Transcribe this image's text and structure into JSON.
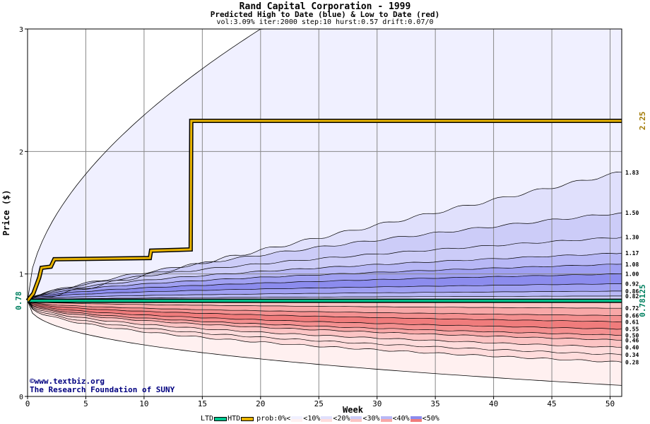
{
  "header": {
    "title": "Rand Capital Corporation - 1999",
    "subtitle": "Predicted High to Date (blue) &  Low to Date (red)",
    "params": "vol:3.09% iter:2000 step:10 hurst:0.57 drift:0.07/0"
  },
  "credits": {
    "line1": "©www.textbiz.org",
    "line2": "The Research Foundation of SUNY"
  },
  "legend": {
    "ltd": "LTD",
    "htd": "HTD",
    "prob": "prob:0%<",
    "b10": "<10%",
    "b20": "<20%",
    "b30": "<30%",
    "b40": "<40%",
    "b50": "<50%"
  },
  "colors": {
    "ltd": "#00c890",
    "htd": "#e8b400",
    "current": "#008060",
    "highlabel": "#a07800",
    "blue_bands": [
      "#f0f0ff",
      "#e0e0fc",
      "#ccccf8",
      "#b8b8f6",
      "#a0a0f2",
      "#8c8cee"
    ],
    "red_bands": [
      "#fff0f0",
      "#ffdcdc",
      "#fcc4c4",
      "#f8a8a8",
      "#f49090",
      "#f07c7c"
    ]
  },
  "chart_data": {
    "type": "area",
    "title": "Rand Capital Corporation - 1999",
    "subtitle": "Predicted High to Date (blue) &  Low to Date (red)",
    "xlabel": "Week",
    "ylabel": "Price ($)",
    "xlim": [
      0,
      51
    ],
    "ylim": [
      0,
      3
    ],
    "xticks": [
      0,
      5,
      10,
      15,
      20,
      25,
      30,
      35,
      40,
      45,
      50
    ],
    "yticks": [
      0,
      1,
      2,
      3
    ],
    "grid": true,
    "current_price": 0.78125,
    "current_price_label": "0.78",
    "current_price_right_label": "0.78125",
    "high_to_date_label": "2.25",
    "high_quantiles": [
      {
        "label": "1.83",
        "end": 1.83,
        "k": 1.0
      },
      {
        "label": "1.50",
        "end": 1.5,
        "k": 0.7
      },
      {
        "label": "1.30",
        "end": 1.3,
        "k": 0.58
      },
      {
        "label": "1.17",
        "end": 1.17,
        "k": 0.52
      },
      {
        "label": "1.08",
        "end": 1.08,
        "k": 0.48
      },
      {
        "label": "1.00",
        "end": 1.0,
        "k": 0.45
      },
      {
        "label": "0.92",
        "end": 0.92,
        "k": 0.4
      },
      {
        "label": "0.86",
        "end": 0.86,
        "k": 0.38
      },
      {
        "label": "0.82",
        "end": 0.82,
        "k": 0.35
      }
    ],
    "low_quantiles": [
      {
        "label": "0.72",
        "end": 0.72
      },
      {
        "label": "0.66",
        "end": 0.66
      },
      {
        "label": "0.61",
        "end": 0.61
      },
      {
        "label": "0.55",
        "end": 0.55
      },
      {
        "label": "0.50",
        "end": 0.5
      },
      {
        "label": "0.46",
        "end": 0.46
      },
      {
        "label": "0.40",
        "end": 0.4
      },
      {
        "label": "0.34",
        "end": 0.34
      },
      {
        "label": "0.28",
        "end": 0.28
      }
    ],
    "max_envelope": {
      "end": 3.0,
      "reaches_top_week": 20
    },
    "min_envelope": {
      "end": 0.09
    },
    "high_to_date_series": {
      "x": [
        0,
        0.5,
        1,
        1.2,
        2,
        2.3,
        10.5,
        10.6,
        14,
        14.05,
        51
      ],
      "y": [
        0.78125,
        0.84,
        0.97,
        1.05,
        1.06,
        1.12,
        1.13,
        1.19,
        1.2,
        2.25,
        2.25
      ]
    },
    "low_to_date_series": {
      "x": [
        0,
        51
      ],
      "y": [
        0.78125,
        0.78125
      ]
    }
  }
}
